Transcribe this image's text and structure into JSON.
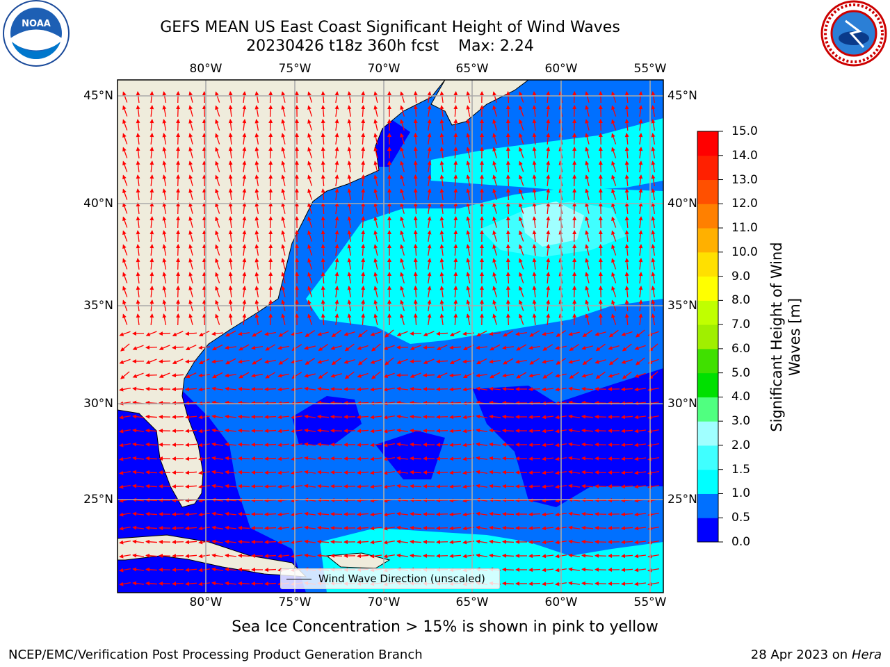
{
  "title": {
    "line1": "GEFS MEAN US East Coast Significant Height of Wind Waves",
    "line2": "20230426 t18z 360h fcst    Max: 2.24"
  },
  "logos": {
    "left": "noaa-logo",
    "left_text": "NOAA",
    "right": "nws-logo"
  },
  "map": {
    "lon_labels": [
      "80°W",
      "75°W",
      "70°W",
      "65°W",
      "60°W",
      "55°W"
    ],
    "lat_labels": [
      "45°N",
      "40°N",
      "35°N",
      "30°N",
      "25°N"
    ],
    "land_color": "#efecdc",
    "arrow_color": "#ff0000",
    "legend_label": "Wind Wave Direction (unscaled)"
  },
  "colorbar": {
    "label": "Significant Height of Wind Waves [m]",
    "ticks": [
      "0.0",
      "0.5",
      "1.0",
      "1.5",
      "2.0",
      "3.0",
      "4.0",
      "5.0",
      "6.0",
      "7.0",
      "8.0",
      "9.0",
      "10.0",
      "11.0",
      "12.0",
      "13.0",
      "14.0",
      "15.0"
    ],
    "colors": [
      "#0000ff",
      "#0070ff",
      "#00ffff",
      "#40ffff",
      "#a0ffff",
      "#50ff80",
      "#00e000",
      "#40e000",
      "#a0ef00",
      "#c0ff00",
      "#ffff00",
      "#ffe000",
      "#ffb000",
      "#ff8000",
      "#ff5000",
      "#ff2000",
      "#ff0000"
    ]
  },
  "ice_note": "Sea Ice Concentration > 15% is shown in pink to yellow",
  "footer": {
    "left": "NCEP/EMC/Verification Post Processing Product Generation Branch",
    "right_prefix": "28 Apr 2023 on ",
    "right_machine": "Hera"
  }
}
